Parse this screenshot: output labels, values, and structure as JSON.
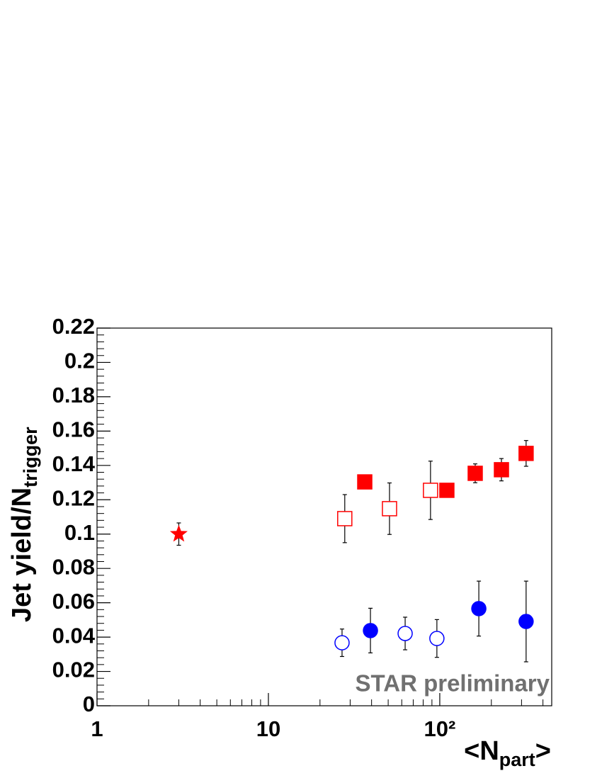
{
  "chart_data": {
    "type": "scatter",
    "xlabel": {
      "pre": "<N",
      "sub": "part",
      "post": ">"
    },
    "ylabel": {
      "pre": "Jet yield/N",
      "sub": "trigger"
    },
    "annotation": "STAR preliminary",
    "xlog": true,
    "xlim": [
      1,
      450
    ],
    "ylim": [
      0,
      0.22
    ],
    "xticks": [
      1,
      10,
      {
        "value": 100,
        "label": "10²"
      }
    ],
    "xminorticks": [
      2,
      3,
      4,
      5,
      6,
      7,
      8,
      9,
      20,
      30,
      40,
      50,
      60,
      70,
      80,
      90,
      200,
      300,
      400
    ],
    "yticks": [
      0,
      0.02,
      0.04,
      0.06,
      0.08,
      0.1,
      0.12,
      0.14,
      0.16,
      0.18,
      0.2,
      0.22
    ],
    "yminorticks": [
      0.004,
      0.008,
      0.012,
      0.016,
      0.024,
      0.028,
      0.032,
      0.036,
      0.044,
      0.048,
      0.052,
      0.056,
      0.064,
      0.068,
      0.072,
      0.076,
      0.084,
      0.088,
      0.092,
      0.096,
      0.104,
      0.108,
      0.112,
      0.116,
      0.124,
      0.128,
      0.132,
      0.136,
      0.144,
      0.148,
      0.152,
      0.156,
      0.164,
      0.168,
      0.172,
      0.176,
      0.184,
      0.188,
      0.192,
      0.196,
      0.204,
      0.208,
      0.212,
      0.216
    ],
    "series": [
      {
        "color": "#ff0000",
        "marker": "star",
        "filled": true,
        "x": [
          3.0
        ],
        "values": [
          0.1
        ],
        "errors": [
          0.0065
        ]
      },
      {
        "color": "#ff0000",
        "marker": "square",
        "filled": true,
        "x": [
          36.5,
          110,
          161,
          229,
          319
        ],
        "values": [
          0.1304,
          0.1255,
          0.1354,
          0.1375,
          0.147
        ],
        "errors": [
          0.0,
          0.004,
          0.0055,
          0.0065,
          0.0075
        ]
      },
      {
        "color": "#ff0000",
        "marker": "square",
        "filled": false,
        "x": [
          27.9,
          50.9,
          88.3
        ],
        "values": [
          0.109,
          0.1148,
          0.1255
        ],
        "errors": [
          0.014,
          0.015,
          0.017
        ]
      },
      {
        "color": "#0000ff",
        "marker": "circle",
        "filled": true,
        "x": [
          39.4,
          169,
          319
        ],
        "values": [
          0.0438,
          0.0566,
          0.0491
        ],
        "errors": [
          0.013,
          0.016,
          0.0235
        ]
      },
      {
        "color": "#0000ff",
        "marker": "circle",
        "filled": false,
        "x": [
          26.9,
          62.8,
          96.2
        ],
        "values": [
          0.0367,
          0.0421,
          0.0392
        ],
        "errors": [
          0.008,
          0.0095,
          0.011
        ]
      }
    ]
  }
}
